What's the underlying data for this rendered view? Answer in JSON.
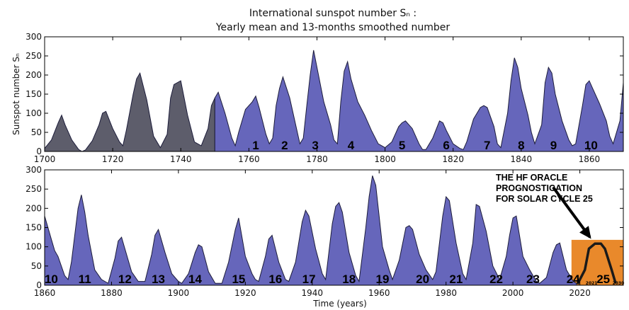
{
  "chart_data": {
    "type": "area",
    "title": "International sunspot number Sₙ :",
    "subtitle": "Yearly mean and 13-months smoothed number",
    "ylabel": "Sunspot number Sₙ",
    "xlabel": "Time (years)",
    "panels": [
      {
        "xlim": [
          1700,
          1870
        ],
        "ylim": [
          0,
          300
        ],
        "xticks": [
          1700,
          1720,
          1740,
          1760,
          1780,
          1800,
          1820,
          1840,
          1860
        ],
        "yticks": [
          0,
          50,
          100,
          150,
          200,
          250,
          300
        ],
        "series": [
          {
            "color": "#5d5d6b",
            "x": [
              1700,
              1702,
              1704,
              1705,
              1706,
              1708,
              1710,
              1711,
              1712,
              1714,
              1716,
              1717,
              1718,
              1720,
              1722,
              1723,
              1724,
              1726,
              1727,
              1728,
              1730,
              1732,
              1734,
              1736,
              1737,
              1738,
              1740,
              1742,
              1744,
              1746,
              1748,
              1749,
              1750
            ],
            "y": [
              8,
              30,
              75,
              95,
              70,
              30,
              5,
              0,
              4,
              28,
              70,
              100,
              105,
              60,
              25,
              15,
              55,
              150,
              190,
              205,
              135,
              40,
              10,
              45,
              140,
              175,
              185,
              95,
              25,
              15,
              60,
              120,
              140
            ]
          },
          {
            "color": "#6666bb",
            "x": [
              1750,
              1751,
              1753,
              1755,
              1756,
              1757,
              1759,
              1761,
              1762,
              1763,
              1765,
              1766,
              1767,
              1768,
              1769,
              1770,
              1772,
              1774,
              1775,
              1776,
              1777,
              1778,
              1779,
              1780,
              1782,
              1784,
              1785,
              1786,
              1787,
              1788,
              1789,
              1790,
              1792,
              1794,
              1796,
              1798,
              1800,
              1802,
              1804,
              1805,
              1806,
              1808,
              1810,
              1811,
              1812,
              1814,
              1816,
              1817,
              1818,
              1820,
              1822,
              1823,
              1824,
              1826,
              1828,
              1829,
              1830,
              1832,
              1833,
              1834,
              1836,
              1837,
              1838,
              1839,
              1840,
              1842,
              1843,
              1844,
              1846,
              1847,
              1848,
              1849,
              1850,
              1852,
              1854,
              1855,
              1856,
              1858,
              1859,
              1860,
              1861,
              1863,
              1865,
              1866,
              1867,
              1869,
              1870
            ],
            "y": [
              140,
              155,
              100,
              35,
              15,
              50,
              110,
              130,
              145,
              115,
              45,
              20,
              35,
              120,
              165,
              195,
              140,
              60,
              20,
              35,
              120,
              200,
              265,
              220,
              130,
              70,
              30,
              20,
              130,
              210,
              235,
              190,
              130,
              95,
              55,
              20,
              10,
              25,
              65,
              75,
              80,
              60,
              20,
              5,
              5,
              35,
              80,
              75,
              55,
              20,
              8,
              5,
              25,
              85,
              115,
              120,
              115,
              65,
              20,
              10,
              100,
              185,
              245,
              220,
              165,
              95,
              50,
              20,
              70,
              180,
              220,
              205,
              150,
              80,
              30,
              15,
              20,
              120,
              175,
              185,
              165,
              125,
              80,
              40,
              20,
              80,
              180
            ]
          }
        ],
        "cycle_labels": [
          {
            "label": "1",
            "x": 1762
          },
          {
            "label": "2",
            "x": 1770.5
          },
          {
            "label": "3",
            "x": 1779.5
          },
          {
            "label": "4",
            "x": 1790
          },
          {
            "label": "5",
            "x": 1805
          },
          {
            "label": "6",
            "x": 1818
          },
          {
            "label": "7",
            "x": 1830
          },
          {
            "label": "8",
            "x": 1840
          },
          {
            "label": "9",
            "x": 1849.5
          },
          {
            "label": "10",
            "x": 1860.5
          }
        ]
      },
      {
        "xlim": [
          1860,
          2033
        ],
        "ylim": [
          0,
          300
        ],
        "xticks": [
          1860,
          1880,
          1900,
          1920,
          1940,
          1960,
          1980,
          2000,
          2020
        ],
        "yticks": [
          0,
          50,
          100,
          150,
          200,
          250,
          300
        ],
        "series": [
          {
            "color": "#6666bb",
            "x": [
              1860,
              1862,
              1863,
              1864,
              1866,
              1867,
              1868,
              1870,
              1871,
              1872,
              1873,
              1875,
              1877,
              1879,
              1881,
              1882,
              1883,
              1884,
              1886,
              1888,
              1890,
              1892,
              1893,
              1894,
              1896,
              1898,
              1900,
              1901,
              1903,
              1905,
              1906,
              1907,
              1909,
              1911,
              1913,
              1915,
              1917,
              1918,
              1920,
              1922,
              1923,
              1924,
              1926,
              1927,
              1928,
              1930,
              1932,
              1933,
              1935,
              1937,
              1938,
              1939,
              1941,
              1943,
              1944,
              1946,
              1947,
              1948,
              1949,
              1951,
              1953,
              1954,
              1956,
              1957,
              1958,
              1959,
              1961,
              1963,
              1964,
              1966,
              1968,
              1969,
              1970,
              1972,
              1974,
              1976,
              1977,
              1979,
              1980,
              1981,
              1983,
              1985,
              1986,
              1988,
              1989,
              1990,
              1992,
              1994,
              1996,
              1998,
              1999,
              2000,
              2001,
              2003,
              2005,
              2007,
              2008,
              2010,
              2012,
              2013,
              2014,
              2016,
              2018,
              2019
            ],
            "y": [
              180,
              120,
              90,
              75,
              25,
              15,
              60,
              200,
              235,
              190,
              130,
              40,
              15,
              5,
              70,
              115,
              125,
              95,
              35,
              10,
              10,
              80,
              130,
              145,
              85,
              30,
              10,
              5,
              30,
              85,
              105,
              100,
              35,
              5,
              5,
              60,
              145,
              175,
              75,
              30,
              15,
              10,
              75,
              120,
              130,
              60,
              15,
              10,
              60,
              165,
              195,
              180,
              95,
              30,
              15,
              160,
              205,
              215,
              190,
              85,
              25,
              10,
              150,
              230,
              285,
              260,
              100,
              40,
              15,
              65,
              150,
              155,
              145,
              80,
              40,
              15,
              35,
              180,
              230,
              220,
              110,
              30,
              15,
              110,
              210,
              205,
              140,
              50,
              15,
              75,
              130,
              175,
              180,
              75,
              40,
              10,
              5,
              20,
              85,
              105,
              110,
              40,
              10,
              5
            ]
          },
          {
            "color": "#1a1a1a",
            "x": [
              2019.3,
              2021.5,
              2022.7,
              2024.5,
              2026.3,
              2027.5,
              2029.5,
              2030.7
            ],
            "y": [
              3,
              40,
              95,
              108,
              108,
              95,
              40,
              5
            ]
          }
        ],
        "cycle_labels": [
          {
            "label": "10",
            "x": 1862
          },
          {
            "label": "11",
            "x": 1872
          },
          {
            "label": "12",
            "x": 1884
          },
          {
            "label": "13",
            "x": 1894
          },
          {
            "label": "14",
            "x": 1905
          },
          {
            "label": "15",
            "x": 1918
          },
          {
            "label": "16",
            "x": 1929
          },
          {
            "label": "17",
            "x": 1939
          },
          {
            "label": "18",
            "x": 1951
          },
          {
            "label": "19",
            "x": 1961
          },
          {
            "label": "20",
            "x": 1973
          },
          {
            "label": "21",
            "x": 1983
          },
          {
            "label": "22",
            "x": 1995
          },
          {
            "label": "23",
            "x": 2006
          },
          {
            "label": "24",
            "x": 2018
          },
          {
            "label": "25",
            "x": 2027
          }
        ],
        "annotation": {
          "lines": [
            "THE HF ORACLE",
            "PROGNOSTICATION",
            "FOR SOLAR CYCLE 25"
          ],
          "arrow_from": [
            2012,
            255
          ],
          "arrow_to": [
            2023,
            125
          ]
        },
        "inset": {
          "x_range": [
            2017.5,
            2033
          ],
          "y_range": [
            0,
            118
          ],
          "color": "#e9892b",
          "tick_labels": [
            {
              "label": "2021",
              "x": 2023.5
            },
            {
              "label": "2030",
              "x": 2031.5
            }
          ]
        }
      }
    ]
  }
}
